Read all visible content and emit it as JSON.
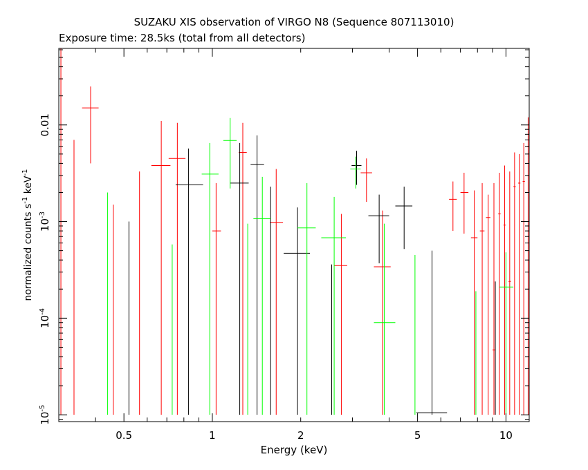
{
  "chart_data": {
    "type": "scatter",
    "title": "SUZAKU XIS observation of VIRGO N8 (Sequence 807113010)",
    "subtitle": "Exposure time: 28.5ks (total from all detectors)",
    "xlabel": "Energy (keV)",
    "ylabel_main": "normalized counts s",
    "ylabel_sup1": "-1",
    "ylabel_mid": " keV",
    "ylabel_sup2": "-1",
    "x_scale": "log",
    "y_scale": "log",
    "xlim": [
      0.3,
      12
    ],
    "ylim": [
      8.5e-06,
      0.062
    ],
    "x_ticks": [
      {
        "value": 0.5,
        "label": "0.5"
      },
      {
        "value": 1,
        "label": "1"
      },
      {
        "value": 2,
        "label": "2"
      },
      {
        "value": 5,
        "label": "5"
      },
      {
        "value": 10,
        "label": "10"
      }
    ],
    "y_ticks": [
      {
        "value": 1e-05,
        "label": "10",
        "sup": "-5"
      },
      {
        "value": 0.0001,
        "label": "10",
        "sup": "-4"
      },
      {
        "value": 0.001,
        "label": "10",
        "sup": "-3"
      },
      {
        "value": 0.01,
        "label": "0.01",
        "sup": ""
      }
    ],
    "grid": false,
    "legend": "none",
    "series": [
      {
        "color": "#ff0000",
        "points": [
          {
            "x": 0.305,
            "xlo": 0.3,
            "xhi": 0.31,
            "y": 0.03,
            "ylo": 1e-05,
            "yhi": 0.062
          },
          {
            "x": 0.338,
            "xlo": 0.338,
            "xhi": 0.338,
            "y": 0.0025,
            "ylo": 1e-05,
            "yhi": 0.007
          },
          {
            "x": 0.385,
            "xlo": 0.36,
            "xhi": 0.41,
            "y": 0.015,
            "ylo": 0.004,
            "yhi": 0.025
          },
          {
            "x": 0.46,
            "xlo": 0.46,
            "xhi": 0.46,
            "y": 0.0005,
            "ylo": 1e-05,
            "yhi": 0.0015
          },
          {
            "x": 0.565,
            "xlo": 0.565,
            "xhi": 0.565,
            "y": 0.0012,
            "ylo": 1e-05,
            "yhi": 0.0033
          },
          {
            "x": 0.67,
            "xlo": 0.62,
            "xhi": 0.72,
            "y": 0.0038,
            "ylo": 1e-05,
            "yhi": 0.011
          },
          {
            "x": 0.76,
            "xlo": 0.71,
            "xhi": 0.81,
            "y": 0.0045,
            "ylo": 1e-05,
            "yhi": 0.0105
          },
          {
            "x": 1.03,
            "xlo": 1.0,
            "xhi": 1.07,
            "y": 0.0008,
            "ylo": 1e-05,
            "yhi": 0.0025
          },
          {
            "x": 1.27,
            "xlo": 1.23,
            "xhi": 1.31,
            "y": 0.0052,
            "ylo": 1e-05,
            "yhi": 0.0105
          },
          {
            "x": 1.65,
            "xlo": 1.57,
            "xhi": 1.74,
            "y": 0.00098,
            "ylo": 1e-05,
            "yhi": 0.0035
          },
          {
            "x": 2.75,
            "xlo": 2.6,
            "xhi": 2.88,
            "y": 0.00035,
            "ylo": 1e-05,
            "yhi": 0.0012
          },
          {
            "x": 3.35,
            "xlo": 3.2,
            "xhi": 3.5,
            "y": 0.0032,
            "ylo": 0.0016,
            "yhi": 0.0045
          },
          {
            "x": 3.8,
            "xlo": 3.55,
            "xhi": 4.05,
            "y": 0.00034,
            "ylo": 1e-05,
            "yhi": 0.0013
          },
          {
            "x": 6.6,
            "xlo": 6.4,
            "xhi": 6.8,
            "y": 0.0017,
            "ylo": 0.0008,
            "yhi": 0.0026
          },
          {
            "x": 7.2,
            "xlo": 7.0,
            "xhi": 7.45,
            "y": 0.002,
            "ylo": 0.00075,
            "yhi": 0.0032
          },
          {
            "x": 7.8,
            "xlo": 7.6,
            "xhi": 8.0,
            "y": 0.00068,
            "ylo": 1e-05,
            "yhi": 0.0021
          },
          {
            "x": 8.3,
            "xlo": 8.15,
            "xhi": 8.45,
            "y": 0.0008,
            "ylo": 1e-05,
            "yhi": 0.0025
          },
          {
            "x": 8.7,
            "xlo": 8.55,
            "xhi": 8.85,
            "y": 0.0011,
            "ylo": 1e-05,
            "yhi": 0.0019
          },
          {
            "x": 9.1,
            "xlo": 9.0,
            "xhi": 9.2,
            "y": 4.7e-05,
            "ylo": 1e-05,
            "yhi": 0.0025
          },
          {
            "x": 9.5,
            "xlo": 9.4,
            "xhi": 9.6,
            "y": 0.0012,
            "ylo": 1e-05,
            "yhi": 0.0032
          },
          {
            "x": 9.9,
            "xlo": 9.8,
            "xhi": 10.0,
            "y": 0.00092,
            "ylo": 1e-05,
            "yhi": 0.0038
          },
          {
            "x": 10.3,
            "xlo": 10.2,
            "xhi": 10.4,
            "y": 0.00024,
            "ylo": 1e-05,
            "yhi": 0.0033
          },
          {
            "x": 10.7,
            "xlo": 10.6,
            "xhi": 10.8,
            "y": 0.0023,
            "ylo": 1e-05,
            "yhi": 0.0052
          },
          {
            "x": 11.1,
            "xlo": 11.0,
            "xhi": 11.2,
            "y": 0.0025,
            "ylo": 1e-05,
            "yhi": 0.005
          },
          {
            "x": 11.5,
            "xlo": 11.4,
            "xhi": 11.6,
            "y": 0.0026,
            "ylo": 1e-05,
            "yhi": 0.0065
          },
          {
            "x": 11.9,
            "xlo": 11.8,
            "xhi": 12.0,
            "y": 0.006,
            "ylo": 1e-05,
            "yhi": 0.012
          }
        ]
      },
      {
        "color": "#000000",
        "points": [
          {
            "x": 0.52,
            "xlo": 0.52,
            "xhi": 0.52,
            "y": 0.0003,
            "ylo": 1e-05,
            "yhi": 0.001
          },
          {
            "x": 0.83,
            "xlo": 0.75,
            "xhi": 0.93,
            "y": 0.0024,
            "ylo": 1e-05,
            "yhi": 0.0057
          },
          {
            "x": 1.24,
            "xlo": 1.15,
            "xhi": 1.33,
            "y": 0.0025,
            "ylo": 1e-05,
            "yhi": 0.0065
          },
          {
            "x": 1.42,
            "xlo": 1.35,
            "xhi": 1.5,
            "y": 0.0039,
            "ylo": 1e-05,
            "yhi": 0.0078
          },
          {
            "x": 1.58,
            "xlo": 1.58,
            "xhi": 1.58,
            "y": 0.0008,
            "ylo": 1e-05,
            "yhi": 0.0023
          },
          {
            "x": 1.95,
            "xlo": 1.75,
            "xhi": 2.15,
            "y": 0.00047,
            "ylo": 1e-05,
            "yhi": 0.0014
          },
          {
            "x": 2.55,
            "xlo": 2.55,
            "xhi": 2.55,
            "y": 0.00012,
            "ylo": 1e-05,
            "yhi": 0.00036
          },
          {
            "x": 3.1,
            "xlo": 2.98,
            "xhi": 3.22,
            "y": 0.0038,
            "ylo": 0.0024,
            "yhi": 0.0054
          },
          {
            "x": 3.7,
            "xlo": 3.4,
            "xhi": 4.0,
            "y": 0.00115,
            "ylo": 0.00037,
            "yhi": 0.0019
          },
          {
            "x": 4.5,
            "xlo": 4.2,
            "xhi": 4.8,
            "y": 0.00145,
            "ylo": 0.00052,
            "yhi": 0.0023
          },
          {
            "x": 5.6,
            "xlo": 4.95,
            "xhi": 6.3,
            "y": 1.05e-05,
            "ylo": 1e-05,
            "yhi": 0.0005
          },
          {
            "x": 9.2,
            "xlo": 9.2,
            "xhi": 9.2,
            "y": 0.0001,
            "ylo": 1e-05,
            "yhi": 0.00024
          }
        ]
      },
      {
        "color": "#00ff00",
        "points": [
          {
            "x": 0.44,
            "xlo": 0.44,
            "xhi": 0.44,
            "y": 0.0007,
            "ylo": 1e-05,
            "yhi": 0.002
          },
          {
            "x": 0.73,
            "xlo": 0.73,
            "xhi": 0.73,
            "y": 0.0002,
            "ylo": 1e-05,
            "yhi": 0.00058
          },
          {
            "x": 0.98,
            "xlo": 0.92,
            "xhi": 1.05,
            "y": 0.0031,
            "ylo": 1e-05,
            "yhi": 0.0065
          },
          {
            "x": 1.15,
            "xlo": 1.09,
            "xhi": 1.21,
            "y": 0.0069,
            "ylo": 0.0022,
            "yhi": 0.0118
          },
          {
            "x": 1.32,
            "xlo": 1.32,
            "xhi": 1.32,
            "y": 0.0003,
            "ylo": 1e-05,
            "yhi": 0.00095
          },
          {
            "x": 1.48,
            "xlo": 1.38,
            "xhi": 1.58,
            "y": 0.00107,
            "ylo": 1e-05,
            "yhi": 0.0029
          },
          {
            "x": 2.1,
            "xlo": 1.95,
            "xhi": 2.25,
            "y": 0.00086,
            "ylo": 1e-05,
            "yhi": 0.0025
          },
          {
            "x": 2.6,
            "xlo": 2.35,
            "xhi": 2.85,
            "y": 0.00068,
            "ylo": 1e-05,
            "yhi": 0.0018
          },
          {
            "x": 3.08,
            "xlo": 2.95,
            "xhi": 3.2,
            "y": 0.0035,
            "ylo": 0.0022,
            "yhi": 0.0047
          },
          {
            "x": 3.85,
            "xlo": 3.55,
            "xhi": 4.2,
            "y": 9e-05,
            "ylo": 1e-05,
            "yhi": 0.00095
          },
          {
            "x": 4.9,
            "xlo": 4.9,
            "xhi": 4.9,
            "y": 0.00015,
            "ylo": 1e-05,
            "yhi": 0.00045
          },
          {
            "x": 7.9,
            "xlo": 7.9,
            "xhi": 7.9,
            "y": 6e-05,
            "ylo": 1e-05,
            "yhi": 0.00019
          },
          {
            "x": 10.0,
            "xlo": 9.5,
            "xhi": 10.6,
            "y": 0.00021,
            "ylo": 1e-05,
            "yhi": 0.00048
          }
        ]
      }
    ]
  }
}
